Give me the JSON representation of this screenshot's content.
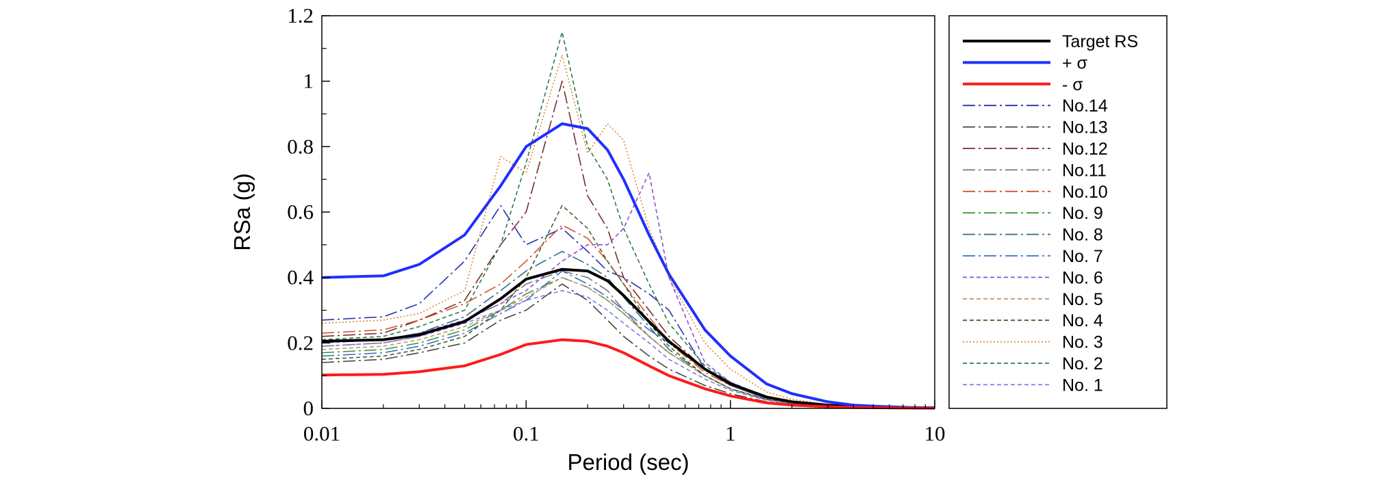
{
  "chart_data": {
    "type": "line",
    "title": "",
    "xlabel": "Period (sec)",
    "ylabel": "RSa (g)",
    "xscale": "log",
    "xlim": [
      0.01,
      10
    ],
    "ylim": [
      0,
      1.2
    ],
    "xticks": [
      0.01,
      0.1,
      1,
      10
    ],
    "xtick_labels": [
      "0.01",
      "0.1",
      "1",
      "10"
    ],
    "yticks": [
      0,
      0.2,
      0.4,
      0.6,
      0.8,
      1.0,
      1.2
    ],
    "ytick_labels": [
      "0",
      "0.2",
      "0.4",
      "0.6",
      "0.8",
      "1",
      "1.2"
    ],
    "legend_position": "right",
    "grid": false,
    "x": [
      0.01,
      0.02,
      0.03,
      0.05,
      0.075,
      0.1,
      0.15,
      0.2,
      0.25,
      0.3,
      0.4,
      0.5,
      0.75,
      1,
      1.5,
      2,
      3,
      4,
      5,
      7.5,
      10
    ],
    "series": [
      {
        "name": "Target RS",
        "color": "#000000",
        "width": 4,
        "dash": "",
        "values": [
          0.205,
          0.21,
          0.225,
          0.265,
          0.335,
          0.395,
          0.425,
          0.42,
          0.39,
          0.345,
          0.265,
          0.205,
          0.12,
          0.075,
          0.035,
          0.02,
          0.01,
          0.006,
          0.004,
          0.002,
          0.001
        ]
      },
      {
        "name": "+ σ",
        "color": "#1f2fff",
        "width": 4,
        "dash": "",
        "values": [
          0.4,
          0.405,
          0.44,
          0.53,
          0.68,
          0.8,
          0.87,
          0.855,
          0.79,
          0.7,
          0.53,
          0.41,
          0.24,
          0.16,
          0.075,
          0.045,
          0.02,
          0.01,
          0.007,
          0.003,
          0.002
        ]
      },
      {
        "name": "- σ",
        "color": "#ff1a1a",
        "width": 4,
        "dash": "",
        "values": [
          0.102,
          0.104,
          0.112,
          0.13,
          0.165,
          0.195,
          0.21,
          0.205,
          0.19,
          0.17,
          0.13,
          0.1,
          0.06,
          0.038,
          0.017,
          0.01,
          0.005,
          0.003,
          0.002,
          0.001,
          0.0005
        ]
      },
      {
        "name": "No.14",
        "color": "#2233aa",
        "width": 1.6,
        "dash": "18,5,3,5",
        "values": [
          0.27,
          0.28,
          0.32,
          0.45,
          0.62,
          0.5,
          0.55,
          0.48,
          0.42,
          0.4,
          0.35,
          0.3,
          0.12,
          0.08,
          0.03,
          0.018,
          0.008,
          0.005,
          0.003,
          0.002,
          0.001
        ]
      },
      {
        "name": "No.13",
        "color": "#444444",
        "width": 1.6,
        "dash": "18,5,3,5",
        "values": [
          0.14,
          0.15,
          0.17,
          0.2,
          0.27,
          0.3,
          0.38,
          0.33,
          0.27,
          0.22,
          0.16,
          0.12,
          0.07,
          0.045,
          0.02,
          0.012,
          0.006,
          0.004,
          0.003,
          0.002,
          0.001
        ]
      },
      {
        "name": "No.12",
        "color": "#7a2a2a",
        "width": 1.6,
        "dash": "18,5,3,5",
        "values": [
          0.22,
          0.23,
          0.27,
          0.33,
          0.5,
          0.6,
          1.0,
          0.65,
          0.55,
          0.4,
          0.3,
          0.22,
          0.12,
          0.07,
          0.03,
          0.018,
          0.008,
          0.005,
          0.003,
          0.002,
          0.001
        ]
      },
      {
        "name": "No.11",
        "color": "#777777",
        "width": 1.6,
        "dash": "18,5,3,5",
        "values": [
          0.19,
          0.2,
          0.22,
          0.27,
          0.32,
          0.38,
          0.42,
          0.4,
          0.36,
          0.3,
          0.22,
          0.17,
          0.1,
          0.06,
          0.028,
          0.016,
          0.008,
          0.005,
          0.003,
          0.002,
          0.001
        ]
      },
      {
        "name": "No.10",
        "color": "#d2542a",
        "width": 1.6,
        "dash": "18,5,3,5",
        "values": [
          0.23,
          0.24,
          0.27,
          0.32,
          0.38,
          0.45,
          0.56,
          0.52,
          0.45,
          0.38,
          0.28,
          0.2,
          0.11,
          0.07,
          0.03,
          0.017,
          0.008,
          0.005,
          0.003,
          0.002,
          0.001
        ]
      },
      {
        "name": "No. 9",
        "color": "#3a9a3a",
        "width": 1.6,
        "dash": "18,5,3,5",
        "values": [
          0.17,
          0.18,
          0.2,
          0.24,
          0.3,
          0.35,
          0.4,
          0.37,
          0.33,
          0.29,
          0.22,
          0.17,
          0.1,
          0.06,
          0.028,
          0.016,
          0.008,
          0.005,
          0.003,
          0.002,
          0.001
        ]
      },
      {
        "name": "No. 8",
        "color": "#2e6c8a",
        "width": 1.6,
        "dash": "18,5,3,5",
        "values": [
          0.2,
          0.21,
          0.23,
          0.28,
          0.36,
          0.42,
          0.48,
          0.44,
          0.4,
          0.34,
          0.25,
          0.18,
          0.1,
          0.06,
          0.027,
          0.015,
          0.007,
          0.004,
          0.003,
          0.002,
          0.001
        ]
      },
      {
        "name": "No. 7",
        "color": "#3a6fc0",
        "width": 1.6,
        "dash": "18,5,3,5",
        "values": [
          0.16,
          0.17,
          0.19,
          0.23,
          0.29,
          0.33,
          0.42,
          0.38,
          0.34,
          0.3,
          0.24,
          0.2,
          0.12,
          0.07,
          0.03,
          0.017,
          0.008,
          0.005,
          0.003,
          0.002,
          0.001
        ]
      },
      {
        "name": "No. 6",
        "color": "#8a4fd0",
        "width": 1.6,
        "dash": "6,4",
        "values": [
          0.2,
          0.21,
          0.23,
          0.27,
          0.32,
          0.36,
          0.45,
          0.5,
          0.5,
          0.55,
          0.72,
          0.4,
          0.14,
          0.08,
          0.03,
          0.017,
          0.008,
          0.005,
          0.003,
          0.002,
          0.001
        ]
      },
      {
        "name": "No. 5",
        "color": "#c8936a",
        "width": 1.6,
        "dash": "6,4",
        "values": [
          0.18,
          0.19,
          0.21,
          0.25,
          0.3,
          0.34,
          0.4,
          0.37,
          0.33,
          0.29,
          0.22,
          0.17,
          0.1,
          0.06,
          0.027,
          0.015,
          0.007,
          0.004,
          0.003,
          0.002,
          0.001
        ]
      },
      {
        "name": "No. 4",
        "color": "#4a5a2a",
        "width": 1.6,
        "dash": "6,4",
        "values": [
          0.15,
          0.16,
          0.18,
          0.22,
          0.3,
          0.4,
          0.62,
          0.55,
          0.45,
          0.38,
          0.26,
          0.19,
          0.1,
          0.06,
          0.027,
          0.015,
          0.007,
          0.004,
          0.003,
          0.002,
          0.001
        ]
      },
      {
        "name": "No. 3",
        "color": "#e0822a",
        "width": 1.6,
        "dash": "2,3",
        "values": [
          0.26,
          0.27,
          0.29,
          0.36,
          0.77,
          0.72,
          1.08,
          0.78,
          0.87,
          0.82,
          0.55,
          0.4,
          0.2,
          0.12,
          0.05,
          0.028,
          0.012,
          0.007,
          0.005,
          0.002,
          0.001
        ]
      },
      {
        "name": "No. 2",
        "color": "#2a7a4a",
        "width": 1.6,
        "dash": "6,4",
        "values": [
          0.21,
          0.22,
          0.25,
          0.3,
          0.5,
          0.75,
          1.15,
          0.8,
          0.7,
          0.55,
          0.38,
          0.26,
          0.13,
          0.08,
          0.035,
          0.02,
          0.009,
          0.005,
          0.003,
          0.002,
          0.001
        ]
      },
      {
        "name": "No. 1",
        "color": "#7a7ae0",
        "width": 1.6,
        "dash": "6,4",
        "values": [
          0.19,
          0.2,
          0.22,
          0.26,
          0.3,
          0.33,
          0.36,
          0.34,
          0.3,
          0.26,
          0.2,
          0.15,
          0.09,
          0.055,
          0.025,
          0.014,
          0.007,
          0.004,
          0.003,
          0.002,
          0.001
        ]
      }
    ]
  }
}
